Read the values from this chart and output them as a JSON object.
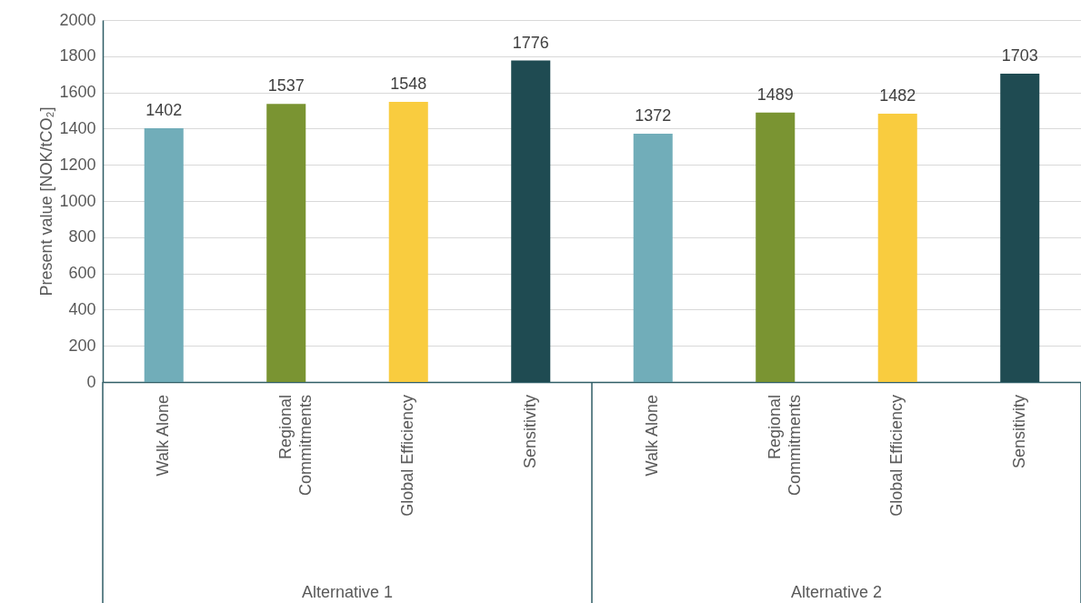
{
  "chart_data": {
    "type": "bar",
    "ylabel": "Present value [NOK/tCO₂]",
    "categories": [
      "Walk Alone",
      "Regional Commitments",
      "Global Efficiency",
      "Sensitivity",
      "Walk Alone",
      "Regional Commitments",
      "Global Efficiency",
      "Sensitivity"
    ],
    "values": [
      1402,
      1537,
      1548,
      1776,
      1372,
      1489,
      1482,
      1703
    ],
    "colors": [
      "#71adb9",
      "#7a9432",
      "#f9cc3f",
      "#1f4b52",
      "#71adb9",
      "#7a9432",
      "#f9cc3f",
      "#1f4b52"
    ],
    "ylim": [
      0,
      2000
    ],
    "yticks": [
      0,
      200,
      400,
      600,
      800,
      1000,
      1200,
      1400,
      1600,
      1800,
      2000
    ],
    "grid": "y",
    "data_labels": true,
    "annotations": [
      "Alternative 1",
      "Alternative 2"
    ]
  }
}
